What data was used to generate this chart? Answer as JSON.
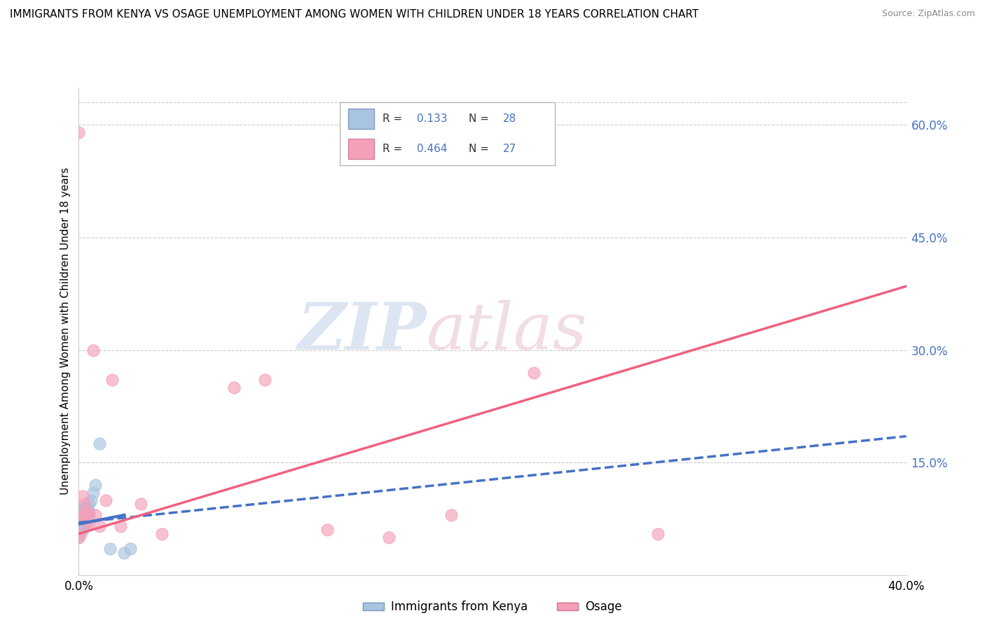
{
  "title": "IMMIGRANTS FROM KENYA VS OSAGE UNEMPLOYMENT AMONG WOMEN WITH CHILDREN UNDER 18 YEARS CORRELATION CHART",
  "source": "Source: ZipAtlas.com",
  "ylabel": "Unemployment Among Women with Children Under 18 years",
  "xlim": [
    0.0,
    0.4
  ],
  "ylim": [
    0.0,
    0.65
  ],
  "yticks": [
    0.0,
    0.15,
    0.3,
    0.45,
    0.6
  ],
  "ytick_labels": [
    "",
    "15.0%",
    "30.0%",
    "45.0%",
    "60.0%"
  ],
  "kenya_color": "#a8c4e0",
  "osage_color": "#f4a0b8",
  "kenya_line_color": "#4472c4",
  "osage_line_color": "#f06080",
  "kenya_x": [
    0.0,
    0.0,
    0.0,
    0.0,
    0.0,
    0.001,
    0.001,
    0.001,
    0.001,
    0.002,
    0.002,
    0.002,
    0.002,
    0.003,
    0.003,
    0.003,
    0.003,
    0.004,
    0.004,
    0.005,
    0.005,
    0.006,
    0.007,
    0.008,
    0.01,
    0.015,
    0.022,
    0.025
  ],
  "kenya_y": [
    0.05,
    0.06,
    0.07,
    0.08,
    0.09,
    0.06,
    0.07,
    0.075,
    0.085,
    0.06,
    0.07,
    0.075,
    0.085,
    0.065,
    0.07,
    0.08,
    0.09,
    0.08,
    0.09,
    0.085,
    0.095,
    0.1,
    0.11,
    0.12,
    0.175,
    0.035,
    0.03,
    0.035
  ],
  "osage_x": [
    0.0,
    0.0,
    0.001,
    0.001,
    0.002,
    0.002,
    0.003,
    0.003,
    0.004,
    0.004,
    0.005,
    0.005,
    0.007,
    0.008,
    0.01,
    0.013,
    0.016,
    0.02,
    0.03,
    0.04,
    0.075,
    0.09,
    0.12,
    0.15,
    0.18,
    0.22,
    0.28
  ],
  "osage_y": [
    0.59,
    0.05,
    0.055,
    0.08,
    0.075,
    0.105,
    0.08,
    0.095,
    0.07,
    0.085,
    0.07,
    0.08,
    0.3,
    0.08,
    0.065,
    0.1,
    0.26,
    0.065,
    0.095,
    0.055,
    0.25,
    0.26,
    0.06,
    0.05,
    0.08,
    0.27,
    0.055
  ],
  "kenya_line_x": [
    0.0,
    0.4
  ],
  "kenya_line_y_start": 0.07,
  "kenya_line_y_end": 0.185,
  "osage_line_x": [
    0.0,
    0.4
  ],
  "osage_line_y_start": 0.055,
  "osage_line_y_end": 0.385
}
